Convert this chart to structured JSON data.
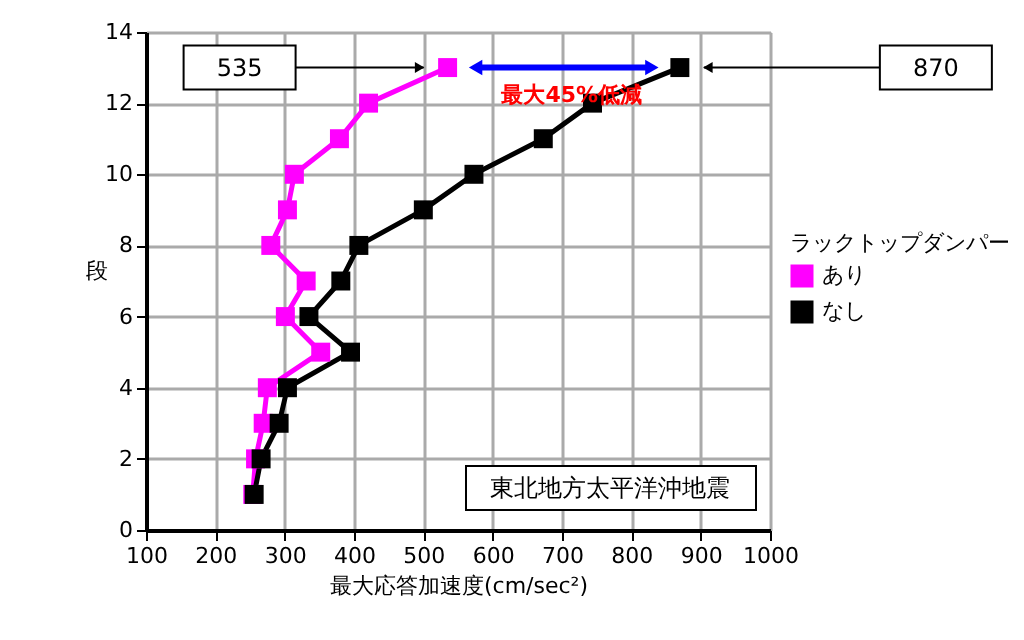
{
  "chart_data": {
    "type": "line",
    "xlabel": "最大応答加速度(cm/sec²)",
    "ylabel": "段",
    "legend_title": "ラックトップダンパー",
    "xlim": [
      100,
      1000
    ],
    "xticks": [
      100,
      200,
      300,
      400,
      500,
      600,
      700,
      800,
      900,
      1000
    ],
    "ylim": [
      0,
      14
    ],
    "yticks": [
      0,
      2,
      4,
      6,
      8,
      10,
      12,
      14
    ],
    "grid": true,
    "legend": "right",
    "marker": "square",
    "line_style": "solid",
    "series": [
      {
        "name": "あり",
        "color": "#ff00ff",
        "x": [
          254,
          258,
          269,
          275,
          352,
          301,
          331,
          280,
          304,
          314,
          379,
          421,
          535
        ],
        "values": [
          1,
          2,
          3,
          4,
          5,
          6,
          7,
          8,
          9,
          10,
          11,
          12,
          13
        ]
      },
      {
        "name": "なし",
        "color": "#000000",
        "x": [
          256,
          266,
          292,
          304,
          395,
          335,
          381,
          407,
          500,
          573,
          673,
          744,
          870
        ],
        "values": [
          1,
          2,
          3,
          4,
          5,
          6,
          7,
          8,
          9,
          10,
          11,
          12,
          13
        ]
      }
    ],
    "annotations": [
      "535",
      "870",
      "最大45%低減",
      "東北地方太平洋沖地震"
    ]
  }
}
